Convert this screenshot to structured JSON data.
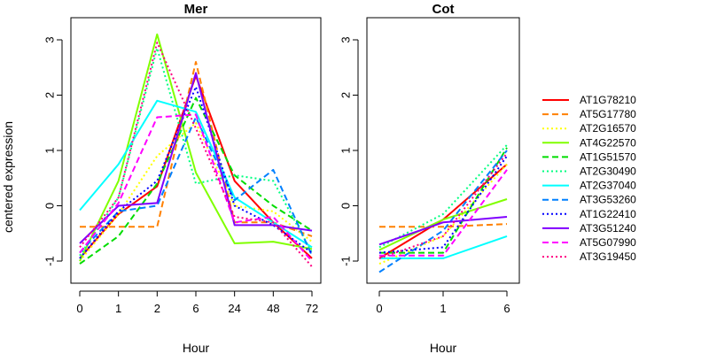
{
  "chart_data": [
    {
      "type": "line",
      "title": "Mer",
      "xlabel": "Hour",
      "ylabel": "centered expression",
      "categories": [
        "0",
        "1",
        "2",
        "6",
        "24",
        "48",
        "72"
      ],
      "ylim": [
        -1.4,
        3.4
      ],
      "yticks": [
        -1,
        0,
        1,
        2,
        3
      ],
      "series": [
        {
          "name": "AT1G78210",
          "color": "#ff0000",
          "dash": "solid",
          "values": [
            -0.95,
            -0.15,
            0.35,
            2.35,
            0.45,
            -0.3,
            -0.95
          ]
        },
        {
          "name": "AT5G17780",
          "color": "#ff8000",
          "dash": "dashed",
          "values": [
            -0.38,
            -0.38,
            -0.38,
            2.6,
            -0.3,
            -0.3,
            -0.55
          ]
        },
        {
          "name": "AT2G16570",
          "color": "#ffff00",
          "dash": "dotted",
          "values": [
            -1.0,
            -0.15,
            0.9,
            1.5,
            0.0,
            -0.1,
            -0.65
          ]
        },
        {
          "name": "AT4G22570",
          "color": "#80ff00",
          "dash": "solid",
          "values": [
            -1.0,
            0.45,
            3.1,
            0.6,
            -0.68,
            -0.65,
            -0.78
          ]
        },
        {
          "name": "AT1G51570",
          "color": "#00dd00",
          "dash": "dashed",
          "values": [
            -1.05,
            -0.55,
            0.4,
            1.95,
            0.55,
            0.0,
            -0.45
          ]
        },
        {
          "name": "AT2G30490",
          "color": "#00ff80",
          "dash": "dotted",
          "values": [
            -0.9,
            0.15,
            2.85,
            0.4,
            0.55,
            0.45,
            -0.85
          ]
        },
        {
          "name": "AT2G37040",
          "color": "#00ffff",
          "dash": "solid",
          "values": [
            -0.08,
            0.75,
            1.9,
            1.7,
            0.15,
            -0.3,
            -0.75
          ]
        },
        {
          "name": "AT3G53260",
          "color": "#0080ff",
          "dash": "dashed",
          "values": [
            -0.85,
            -0.1,
            0.0,
            1.6,
            0.1,
            0.65,
            -0.9
          ]
        },
        {
          "name": "AT1G22410",
          "color": "#0000ff",
          "dash": "dotted",
          "values": [
            -0.95,
            -0.1,
            0.45,
            2.15,
            0.0,
            -0.35,
            -0.85
          ]
        },
        {
          "name": "AT3G51240",
          "color": "#8000ff",
          "dash": "solid",
          "values": [
            -0.68,
            0.0,
            0.05,
            2.4,
            -0.35,
            -0.35,
            -0.45
          ]
        },
        {
          "name": "AT5G07990",
          "color": "#ff00ff",
          "dash": "dashed",
          "values": [
            -0.85,
            0.05,
            1.6,
            1.65,
            -0.3,
            -0.2,
            -1.0
          ]
        },
        {
          "name": "AT3G19450",
          "color": "#ff0080",
          "dash": "dotted",
          "values": [
            -0.75,
            0.15,
            2.95,
            1.4,
            -0.2,
            -0.3,
            -1.1
          ]
        }
      ]
    },
    {
      "type": "line",
      "title": "Cot",
      "xlabel": "Hour",
      "categories": [
        "0",
        "1",
        "6"
      ],
      "ylim": [
        -1.4,
        3.4
      ],
      "yticks": [
        -1,
        0,
        1,
        2,
        3
      ],
      "series": [
        {
          "name": "AT1G78210",
          "color": "#ff0000",
          "dash": "solid",
          "values": [
            -0.95,
            -0.25,
            0.75
          ]
        },
        {
          "name": "AT5G17780",
          "color": "#ff8000",
          "dash": "dashed",
          "values": [
            -0.38,
            -0.38,
            -0.33
          ]
        },
        {
          "name": "AT2G16570",
          "color": "#ffff00",
          "dash": "dotted",
          "values": [
            -1.05,
            -0.55,
            0.75
          ]
        },
        {
          "name": "AT4G22570",
          "color": "#80ff00",
          "dash": "solid",
          "values": [
            -0.8,
            -0.25,
            0.12
          ]
        },
        {
          "name": "AT1G51570",
          "color": "#00dd00",
          "dash": "dashed",
          "values": [
            -0.85,
            -0.85,
            1.05
          ]
        },
        {
          "name": "AT2G30490",
          "color": "#00ff80",
          "dash": "dotted",
          "values": [
            -0.75,
            -0.15,
            1.1
          ]
        },
        {
          "name": "AT2G37040",
          "color": "#00ffff",
          "dash": "solid",
          "values": [
            -0.95,
            -0.95,
            -0.55
          ]
        },
        {
          "name": "AT3G53260",
          "color": "#0080ff",
          "dash": "dashed",
          "values": [
            -1.2,
            -0.45,
            1.0
          ]
        },
        {
          "name": "AT1G22410",
          "color": "#0000ff",
          "dash": "dotted",
          "values": [
            -0.85,
            -0.75,
            0.9
          ]
        },
        {
          "name": "AT3G51240",
          "color": "#8000ff",
          "dash": "solid",
          "values": [
            -0.7,
            -0.3,
            -0.2
          ]
        },
        {
          "name": "AT5G07990",
          "color": "#ff00ff",
          "dash": "dashed",
          "values": [
            -0.9,
            -0.9,
            0.65
          ]
        },
        {
          "name": "AT3G19450",
          "color": "#ff0080",
          "dash": "dotted",
          "values": [
            -0.95,
            -0.55,
            0.95
          ]
        }
      ]
    }
  ]
}
